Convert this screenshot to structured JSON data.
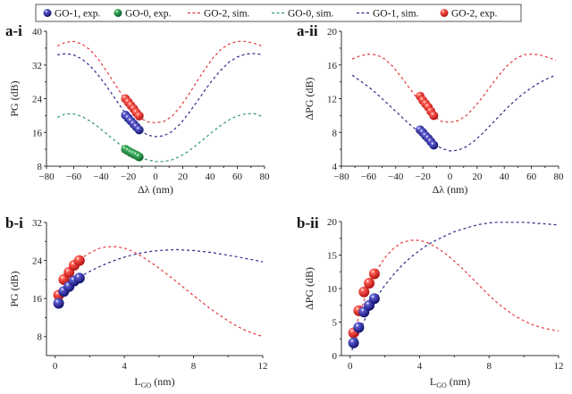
{
  "legend": {
    "entries": [
      {
        "label": "GO-1, exp.",
        "kind": "marker",
        "color": "#1a1a8c"
      },
      {
        "label": "GO-0, exp.",
        "kind": "marker",
        "color": "#1e8a3c"
      },
      {
        "label": "GO-2, sim.",
        "kind": "dash",
        "color": "#e0393e"
      },
      {
        "label": "GO-0, sim.",
        "kind": "dash",
        "color": "#2e9a6a"
      },
      {
        "label": "GO-1, sim.",
        "kind": "dash",
        "color": "#2a2a8a"
      },
      {
        "label": "GO-2, exp.",
        "kind": "marker",
        "color": "#e0201e"
      }
    ]
  },
  "chart_data": [
    {
      "panel": "a-i",
      "type": "scatter",
      "xlabel": "Δλ (nm)",
      "ylabel": "PG (dB)",
      "xlim": [
        -80,
        80
      ],
      "ylim": [
        8,
        40
      ],
      "xticks": [
        -80,
        -60,
        -40,
        -20,
        0,
        20,
        40,
        60,
        80
      ],
      "yticks": [
        8,
        16,
        24,
        32,
        40
      ],
      "series": [
        {
          "name": "GO-2, sim.",
          "style": "dash",
          "color": "#e0393e",
          "x": [
            -72,
            -66,
            -60,
            -54,
            -48,
            -42,
            -36,
            -30,
            -24,
            -18,
            -12,
            -6,
            0,
            6,
            12,
            18,
            24,
            30,
            36,
            42,
            48,
            54,
            60,
            66,
            72,
            78
          ],
          "y": [
            36.5,
            37.4,
            37.6,
            37.0,
            35.6,
            33.4,
            30.6,
            27.6,
            24.6,
            21.8,
            19.6,
            18.5,
            18.3,
            18.6,
            19.8,
            22.0,
            24.8,
            27.9,
            30.9,
            33.6,
            35.7,
            37.0,
            37.6,
            37.6,
            37.2,
            36.5
          ]
        },
        {
          "name": "GO-1, sim.",
          "style": "dash",
          "color": "#2a2a8a",
          "x": [
            -72,
            -66,
            -60,
            -54,
            -48,
            -42,
            -36,
            -30,
            -24,
            -18,
            -12,
            -6,
            0,
            6,
            12,
            18,
            24,
            30,
            36,
            42,
            48,
            54,
            60,
            66,
            72,
            78
          ],
          "y": [
            34.4,
            34.7,
            34.4,
            33.4,
            31.8,
            29.6,
            27.0,
            24.2,
            21.4,
            18.8,
            16.7,
            15.4,
            15.0,
            15.2,
            16.2,
            18.0,
            20.4,
            23.1,
            25.9,
            28.5,
            30.8,
            32.7,
            33.9,
            34.6,
            34.7,
            34.5
          ]
        },
        {
          "name": "GO-0, sim.",
          "style": "dash",
          "color": "#2e9a6a",
          "x": [
            -72,
            -66,
            -60,
            -54,
            -48,
            -42,
            -36,
            -30,
            -24,
            -18,
            -12,
            -6,
            0,
            6,
            12,
            18,
            24,
            30,
            36,
            42,
            48,
            54,
            60,
            66,
            72,
            78
          ],
          "y": [
            19.6,
            20.4,
            20.4,
            19.8,
            18.7,
            17.3,
            15.7,
            14.1,
            12.6,
            11.3,
            10.2,
            9.5,
            9.1,
            9.1,
            9.5,
            10.3,
            11.5,
            13.0,
            14.6,
            16.2,
            17.7,
            19.0,
            19.9,
            20.4,
            20.5,
            19.8
          ]
        },
        {
          "name": "GO-2, exp.",
          "style": "marker",
          "color": "#e0201e",
          "x": [
            -22,
            -20,
            -18,
            -16,
            -14,
            -12
          ],
          "y": [
            24.0,
            23.2,
            22.4,
            21.6,
            20.7,
            19.9
          ]
        },
        {
          "name": "GO-1, exp.",
          "style": "marker",
          "color": "#1a1a8c",
          "x": [
            -22,
            -20,
            -18,
            -16,
            -14,
            -12
          ],
          "y": [
            20.1,
            19.4,
            18.7,
            18.0,
            17.3,
            16.6
          ]
        },
        {
          "name": "GO-0, exp.",
          "style": "marker",
          "color": "#1e8a3c",
          "x": [
            -22,
            -20,
            -18,
            -16,
            -14,
            -12
          ],
          "y": [
            12.0,
            11.6,
            11.2,
            10.9,
            10.6,
            10.2
          ]
        }
      ]
    },
    {
      "panel": "a-ii",
      "type": "scatter",
      "xlabel": "Δλ (nm)",
      "ylabel": "ΔPG (dB)",
      "xlim": [
        -80,
        80
      ],
      "ylim": [
        4,
        20
      ],
      "xticks": [
        -80,
        -60,
        -40,
        -20,
        0,
        20,
        40,
        60,
        80
      ],
      "yticks": [
        4,
        8,
        12,
        16,
        20
      ],
      "series": [
        {
          "name": "GO-2, sim.",
          "style": "dash",
          "color": "#e0393e",
          "x": [
            -72,
            -66,
            -60,
            -54,
            -48,
            -42,
            -36,
            -30,
            -24,
            -18,
            -12,
            -6,
            0,
            6,
            12,
            18,
            24,
            30,
            36,
            42,
            48,
            54,
            60,
            66,
            72,
            78
          ],
          "y": [
            16.7,
            17.1,
            17.3,
            17.2,
            16.7,
            15.8,
            14.6,
            13.3,
            12.0,
            10.8,
            9.9,
            9.3,
            9.2,
            9.4,
            10.0,
            11.0,
            12.2,
            13.5,
            14.8,
            15.9,
            16.7,
            17.2,
            17.3,
            17.2,
            16.9,
            16.6
          ]
        },
        {
          "name": "GO-1, sim.",
          "style": "dash",
          "color": "#2a2a8a",
          "x": [
            -72,
            -66,
            -60,
            -54,
            -48,
            -42,
            -36,
            -30,
            -24,
            -18,
            -12,
            -6,
            0,
            6,
            12,
            18,
            24,
            30,
            36,
            42,
            48,
            54,
            60,
            66,
            72,
            78
          ],
          "y": [
            14.8,
            14.1,
            13.4,
            12.6,
            11.7,
            10.8,
            9.9,
            9.0,
            8.2,
            7.4,
            6.7,
            6.1,
            5.8,
            5.9,
            6.3,
            7.0,
            7.9,
            8.9,
            9.9,
            10.9,
            11.8,
            12.6,
            13.3,
            13.9,
            14.4,
            14.8
          ]
        },
        {
          "name": "GO-2, exp.",
          "style": "marker",
          "color": "#e0201e",
          "x": [
            -22,
            -20,
            -18,
            -16,
            -14,
            -12
          ],
          "y": [
            12.3,
            11.8,
            11.4,
            11.0,
            10.5,
            10.0
          ]
        },
        {
          "name": "GO-1, exp.",
          "style": "marker",
          "color": "#1a1a8c",
          "x": [
            -22,
            -20,
            -18,
            -16,
            -14,
            -12
          ],
          "y": [
            8.3,
            8.0,
            7.6,
            7.3,
            6.9,
            6.5
          ]
        }
      ]
    },
    {
      "panel": "b-i",
      "type": "scatter",
      "xlabel": "LGO (nm)",
      "xlabel_main": "L",
      "xlabel_sub": "GO",
      "xlabel_unit": " (nm)",
      "ylabel": "PG (dB)",
      "xlim": [
        -0.5,
        12
      ],
      "ylim": [
        4,
        32
      ],
      "xticks": [
        0,
        4,
        8,
        12
      ],
      "yticks": [
        8,
        16,
        24,
        32
      ],
      "series": [
        {
          "name": "GO-2, sim.",
          "style": "dash",
          "color": "#e0393e",
          "x": [
            1.4,
            2.0,
            2.5,
            3.0,
            3.5,
            4.0,
            4.5,
            5.0,
            5.5,
            6.0,
            6.5,
            7.0,
            7.5,
            8.0,
            8.5,
            9.0,
            9.5,
            10.0,
            10.5,
            11.0,
            11.5,
            12.0
          ],
          "y": [
            24.2,
            25.6,
            26.5,
            26.9,
            26.9,
            26.6,
            25.9,
            24.9,
            23.7,
            22.4,
            21.0,
            19.6,
            18.1,
            16.6,
            15.2,
            13.8,
            12.5,
            11.3,
            10.2,
            9.3,
            8.6,
            8.0
          ]
        },
        {
          "name": "GO-1, sim.",
          "style": "dash",
          "color": "#2a2a8a",
          "x": [
            1.4,
            2.0,
            2.5,
            3.0,
            3.5,
            4.0,
            4.5,
            5.0,
            5.5,
            6.0,
            6.5,
            7.0,
            7.5,
            8.0,
            8.5,
            9.0,
            9.5,
            10.0,
            10.5,
            11.0,
            11.5,
            12.0
          ],
          "y": [
            20.5,
            21.7,
            22.6,
            23.4,
            24.1,
            24.7,
            25.2,
            25.6,
            25.9,
            26.1,
            26.2,
            26.3,
            26.2,
            26.1,
            25.9,
            25.7,
            25.4,
            25.1,
            24.8,
            24.4,
            24.1,
            23.7
          ]
        },
        {
          "name": "GO-2, exp.",
          "style": "marker",
          "color": "#e0201e",
          "x": [
            0.2,
            0.5,
            0.8,
            1.1,
            1.4
          ],
          "y": [
            16.7,
            20.0,
            21.5,
            23.0,
            24.0
          ]
        },
        {
          "name": "GO-1, exp.",
          "style": "marker",
          "color": "#1a1a8c",
          "x": [
            0.2,
            0.5,
            0.8,
            1.1,
            1.4
          ],
          "y": [
            15.0,
            17.5,
            18.5,
            19.7,
            20.3
          ]
        }
      ]
    },
    {
      "panel": "b-ii",
      "type": "scatter",
      "xlabel": "LGO (nm)",
      "xlabel_main": "L",
      "xlabel_sub": "GO",
      "xlabel_unit": " (nm)",
      "ylabel": "ΔPG (dB)",
      "xlim": [
        -0.5,
        12
      ],
      "ylim": [
        0,
        20
      ],
      "xticks": [
        0,
        4,
        8,
        12
      ],
      "yticks": [
        0,
        5,
        10,
        15,
        20
      ],
      "series": [
        {
          "name": "GO-2, sim.",
          "style": "dash",
          "color": "#e0393e",
          "x": [
            0.1,
            0.5,
            1.0,
            1.5,
            2.0,
            2.5,
            3.0,
            3.5,
            4.0,
            4.5,
            5.0,
            5.5,
            6.0,
            6.5,
            7.0,
            7.5,
            8.0,
            8.5,
            9.0,
            9.5,
            10.0,
            10.5,
            11.0,
            11.5,
            12.0
          ],
          "y": [
            2.0,
            5.8,
            9.8,
            12.6,
            14.6,
            16.0,
            16.9,
            17.2,
            17.2,
            16.8,
            16.1,
            15.2,
            14.1,
            12.9,
            11.6,
            10.3,
            9.0,
            7.8,
            6.8,
            5.9,
            5.2,
            4.6,
            4.2,
            3.9,
            3.7
          ]
        },
        {
          "name": "GO-1, sim.",
          "style": "dash",
          "color": "#2a2a8a",
          "x": [
            0.1,
            0.5,
            1.0,
            1.5,
            2.0,
            2.5,
            3.0,
            3.5,
            4.0,
            4.5,
            5.0,
            5.5,
            6.0,
            6.5,
            7.0,
            7.5,
            8.0,
            8.5,
            9.0,
            9.5,
            10.0,
            10.5,
            11.0,
            11.5,
            12.0
          ],
          "y": [
            0.8,
            3.3,
            6.3,
            8.6,
            10.5,
            12.1,
            13.5,
            14.7,
            15.7,
            16.6,
            17.3,
            17.9,
            18.5,
            18.9,
            19.3,
            19.6,
            19.8,
            19.9,
            19.9,
            19.9,
            19.9,
            19.8,
            19.7,
            19.6,
            19.5
          ]
        },
        {
          "name": "GO-2, exp.",
          "style": "marker",
          "color": "#e0201e",
          "x": [
            0.2,
            0.5,
            0.8,
            1.1,
            1.4
          ],
          "y": [
            3.4,
            6.7,
            9.5,
            10.8,
            12.2
          ]
        },
        {
          "name": "GO-1, exp.",
          "style": "marker",
          "color": "#1a1a8c",
          "x": [
            0.2,
            0.5,
            0.8,
            1.1,
            1.4
          ],
          "y": [
            1.9,
            4.2,
            6.5,
            7.5,
            8.5
          ]
        }
      ]
    }
  ]
}
